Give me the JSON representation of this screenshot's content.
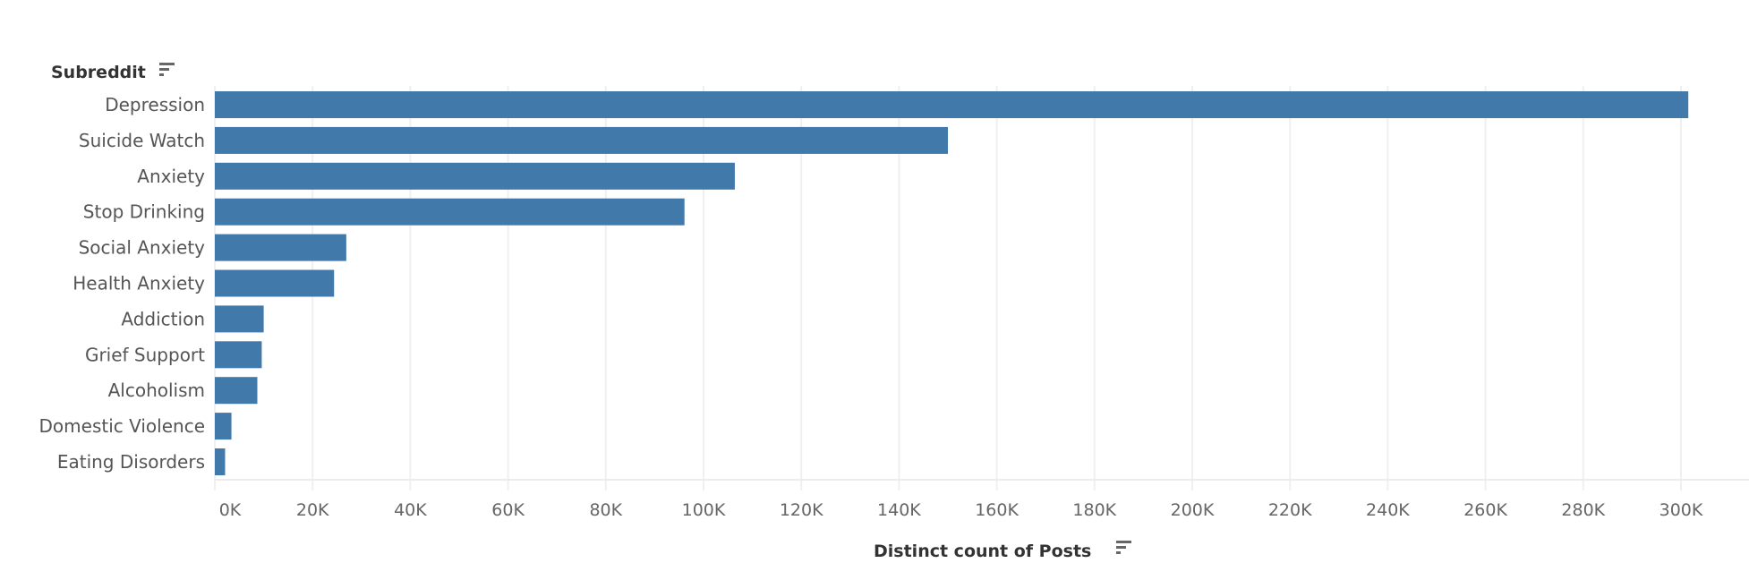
{
  "chart_data": {
    "type": "bar",
    "orientation": "horizontal",
    "title": "",
    "ylabel": "Subreddit",
    "xlabel": "Distinct count of Posts",
    "categories": [
      "Depression",
      "Suicide Watch",
      "Anxiety",
      "Stop Drinking",
      "Social Anxiety",
      "Health Anxiety",
      "Addiction",
      "Grief Support",
      "Alcoholism",
      "Domestic Violence",
      "Eating Disorders"
    ],
    "values": [
      301500,
      150000,
      106400,
      96100,
      26900,
      24400,
      10000,
      9600,
      8700,
      3400,
      2100
    ],
    "xlim": [
      0,
      312000
    ],
    "xticks": [
      0,
      20000,
      40000,
      60000,
      80000,
      100000,
      120000,
      140000,
      160000,
      180000,
      200000,
      220000,
      240000,
      260000,
      280000,
      300000
    ],
    "xtick_labels": [
      "0K",
      "20K",
      "40K",
      "60K",
      "80K",
      "100K",
      "120K",
      "140K",
      "160K",
      "180K",
      "200K",
      "220K",
      "240K",
      "260K",
      "280K",
      "300K"
    ],
    "grid": true,
    "bar_color": "#4279ab",
    "icons": {
      "ylabel_sort": "sort-icon",
      "xlabel_sort": "sort-icon"
    }
  }
}
